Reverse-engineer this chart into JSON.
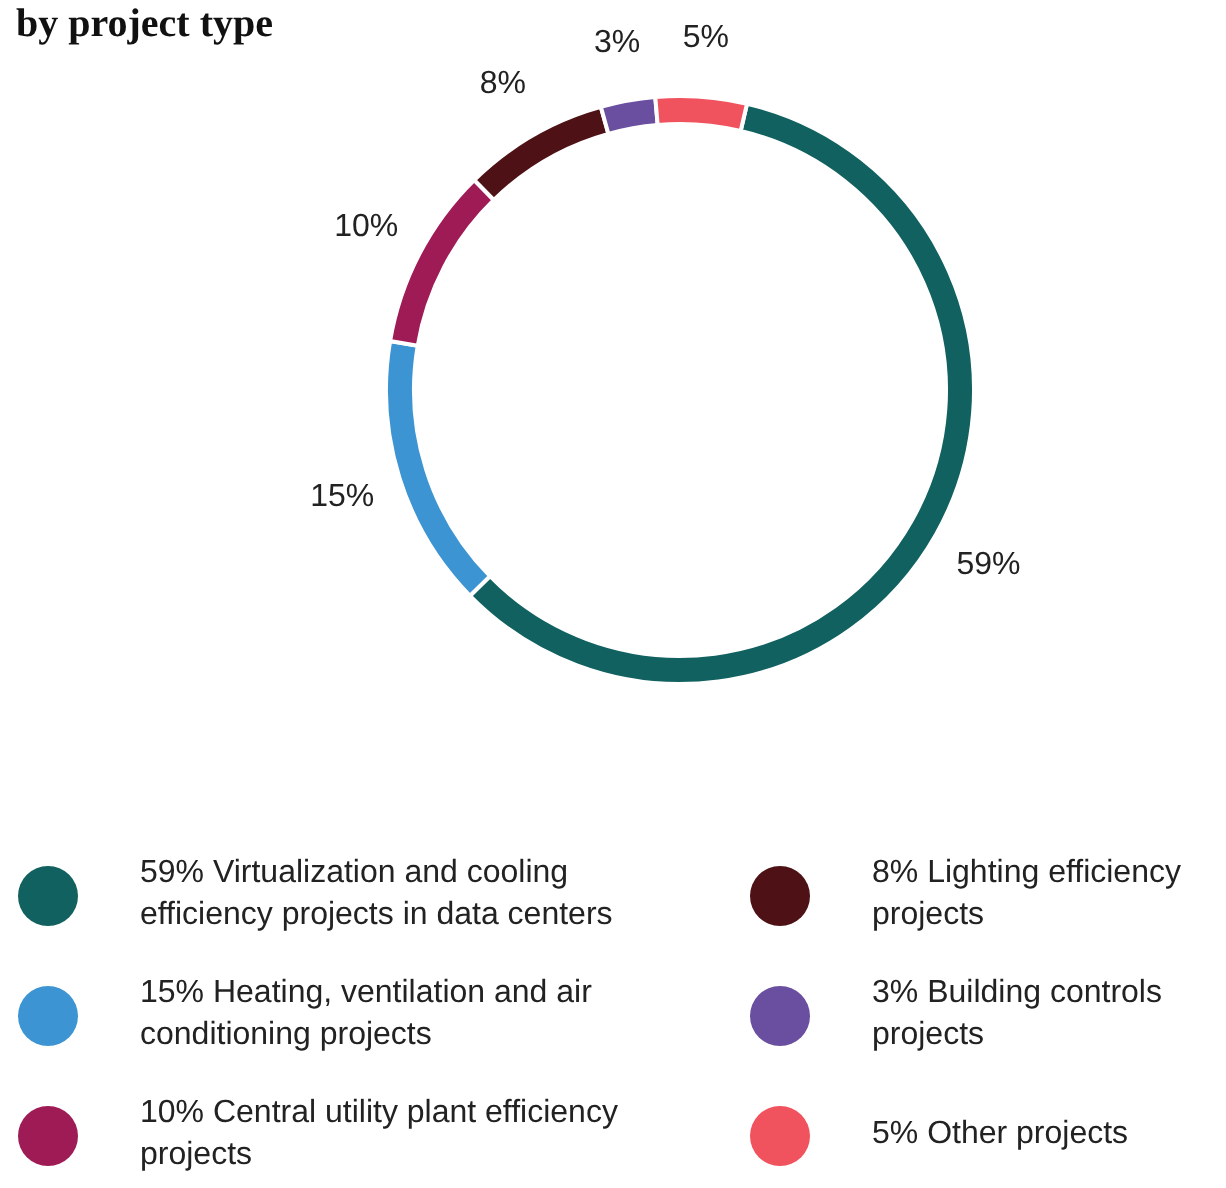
{
  "chart_data": {
    "type": "donut",
    "title": "by project type",
    "categories": [
      "59% Virtualization and cooling efficiency projects in data centers",
      "15% Heating, ventilation and air conditioning projects",
      "10% Central utility plant efficiency projects",
      "8% Lighting efficiency projects",
      "3% Building controls projects",
      "5% Other projects"
    ],
    "values": [
      59,
      15,
      10,
      8,
      3,
      5
    ],
    "value_labels": [
      "59%",
      "15%",
      "10%",
      "8%",
      "3%",
      "5%"
    ],
    "colors": [
      "#10615f",
      "#3d94d3",
      "#9e1b55",
      "#4e1216",
      "#6a4ea0",
      "#f0525e"
    ],
    "legend": "bottom"
  }
}
